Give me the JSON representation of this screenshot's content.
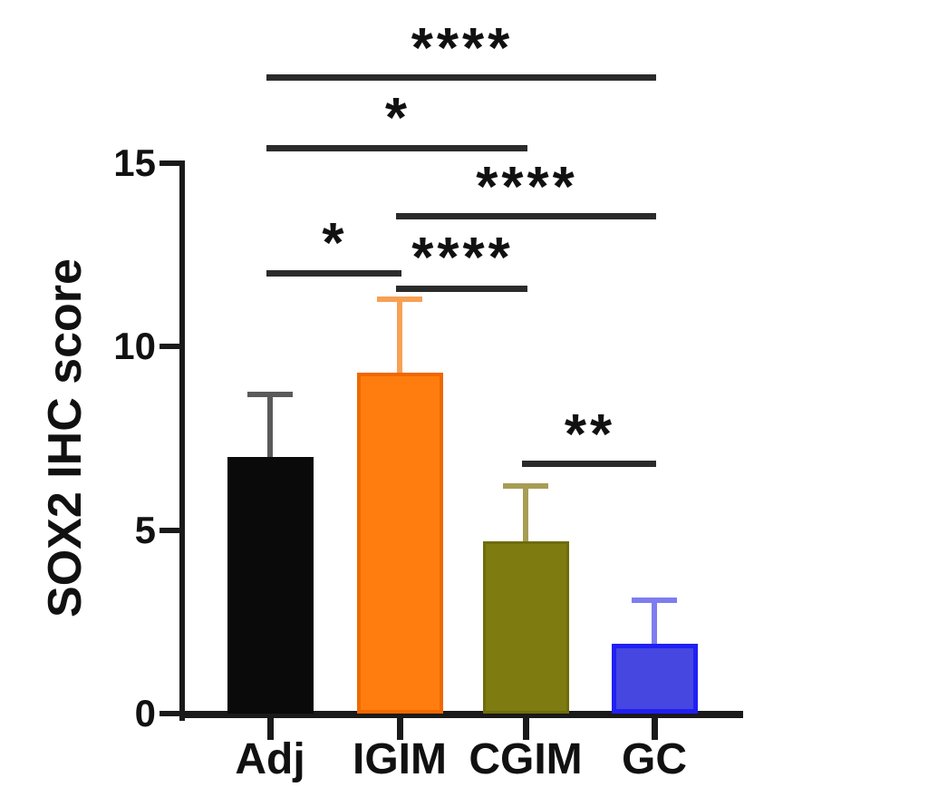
{
  "chart_data": {
    "type": "bar",
    "title": "",
    "ylabel": "SOX2 IHC score",
    "xlabel": "",
    "ylim": [
      0,
      15
    ],
    "yticks": [
      0,
      5,
      10,
      15
    ],
    "grid": false,
    "legend_position": "none",
    "categories": [
      "Adj",
      "IGIM",
      "CGIM",
      "GC"
    ],
    "values": [
      7.0,
      9.3,
      4.7,
      1.9
    ],
    "errors_upper": [
      1.7,
      2.0,
      1.5,
      1.2
    ],
    "bar_fill_colors": [
      "#0a0a0a",
      "#ff7d0e",
      "#7e7b11",
      "#4646e0"
    ],
    "bar_border_colors": [
      "#0a0a0a",
      "#f06800",
      "#6f6c0c",
      "#2020f5"
    ],
    "error_bar_colors": [
      "#5a5a5a",
      "#f8a055",
      "#a79d55",
      "#7d7df0"
    ],
    "significance_brackets": [
      {
        "from": "Adj",
        "to": "GC",
        "stars": "****"
      },
      {
        "from": "Adj",
        "to": "CGIM",
        "stars": "*"
      },
      {
        "from": "IGIM",
        "to": "GC",
        "stars": "****"
      },
      {
        "from": "Adj",
        "to": "IGIM",
        "stars": "*"
      },
      {
        "from": "IGIM",
        "to": "CGIM",
        "stars": "****"
      },
      {
        "from": "CGIM",
        "to": "GC",
        "stars": "**"
      }
    ]
  }
}
